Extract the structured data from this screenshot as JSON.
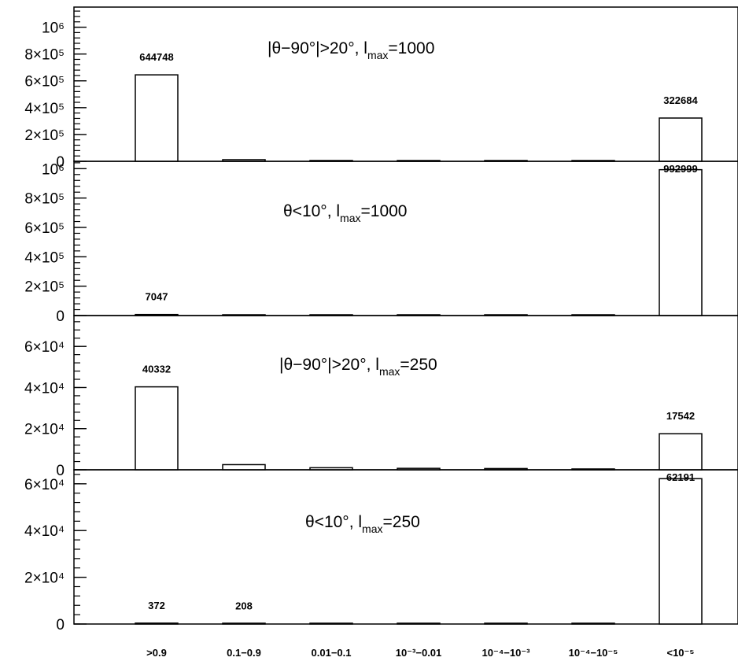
{
  "chart_data": [
    {
      "type": "bar",
      "annotation": {
        "pre": "|θ−90°|>20°,  l",
        "sub": "max",
        "post": "=1000"
      },
      "categories": [
        ">0.9",
        "0.1−0.9",
        "0.01−0.1",
        "10⁻³−0.01",
        "10⁻⁴−10⁻³",
        "10⁻⁴−10⁻⁵",
        "<10⁻⁵"
      ],
      "values": [
        644748,
        12000,
        6000,
        3500,
        2500,
        2000,
        322684
      ],
      "data_labels": [
        "644748",
        "",
        "",
        "",
        "",
        "",
        "322684"
      ],
      "ylim": [
        0,
        1150000
      ],
      "yticks": [
        0,
        200000,
        400000,
        600000,
        800000,
        1000000
      ],
      "ytick_labels": [
        "0",
        "2×10⁵",
        "4×10⁵",
        "6×10⁵",
        "8×10⁵",
        "10⁶"
      ]
    },
    {
      "type": "bar",
      "annotation": {
        "pre": "θ<10°,  l",
        "sub": "max",
        "post": "=1000"
      },
      "categories": [
        ">0.9",
        "0.1−0.9",
        "0.01−0.1",
        "10⁻³−0.01",
        "10⁻⁴−10⁻³",
        "10⁻⁴−10⁻⁵",
        "<10⁻⁵"
      ],
      "values": [
        7047,
        0,
        0,
        0,
        0,
        0,
        992999
      ],
      "data_labels": [
        "7047",
        "",
        "",
        "",
        "",
        "",
        "992999"
      ],
      "ylim": [
        0,
        1050000
      ],
      "yticks": [
        0,
        200000,
        400000,
        600000,
        800000,
        1000000
      ],
      "ytick_labels": [
        "0",
        "2×10⁵",
        "4×10⁵",
        "6×10⁵",
        "8×10⁵",
        "10⁶"
      ]
    },
    {
      "type": "bar",
      "annotation": {
        "pre": "|θ−90°|>20°,  l",
        "sub": "max",
        "post": "=250"
      },
      "categories": [
        ">0.9",
        "0.1−0.9",
        "0.01−0.1",
        "10⁻³−0.01",
        "10⁻⁴−10⁻³",
        "10⁻⁴−10⁻⁵",
        "<10⁻⁵"
      ],
      "values": [
        40332,
        2500,
        1000,
        700,
        600,
        400,
        17542
      ],
      "data_labels": [
        "40332",
        "",
        "",
        "",
        "",
        "",
        "17542"
      ],
      "ylim": [
        0,
        75000
      ],
      "yticks": [
        0,
        20000,
        40000,
        60000
      ],
      "ytick_labels": [
        "0",
        "2×10⁴",
        "4×10⁴",
        "6×10⁴"
      ]
    },
    {
      "type": "bar",
      "annotation": {
        "pre": "θ<10°,  l",
        "sub": "max",
        "post": "=250"
      },
      "categories": [
        ">0.9",
        "0.1−0.9",
        "0.01−0.1",
        "10⁻³−0.01",
        "10⁻⁴−10⁻³",
        "10⁻⁴−10⁻⁵",
        "<10⁻⁵"
      ],
      "values": [
        372,
        208,
        0,
        0,
        0,
        0,
        62191
      ],
      "data_labels": [
        "372",
        "208",
        "",
        "",
        "",
        "",
        "62191"
      ],
      "ylim": [
        0,
        66000
      ],
      "yticks": [
        0,
        20000,
        40000,
        60000
      ],
      "ytick_labels": [
        "0",
        "2×10⁴",
        "4×10⁴",
        "6×10⁴"
      ]
    }
  ],
  "x_tick_labels": [
    ">0.9",
    "0.1−0.9",
    "0.01−0.1",
    "10⁻³−0.01",
    "10⁻⁴−10⁻³",
    "10⁻⁴−10⁻⁵",
    "<10⁻⁵"
  ]
}
